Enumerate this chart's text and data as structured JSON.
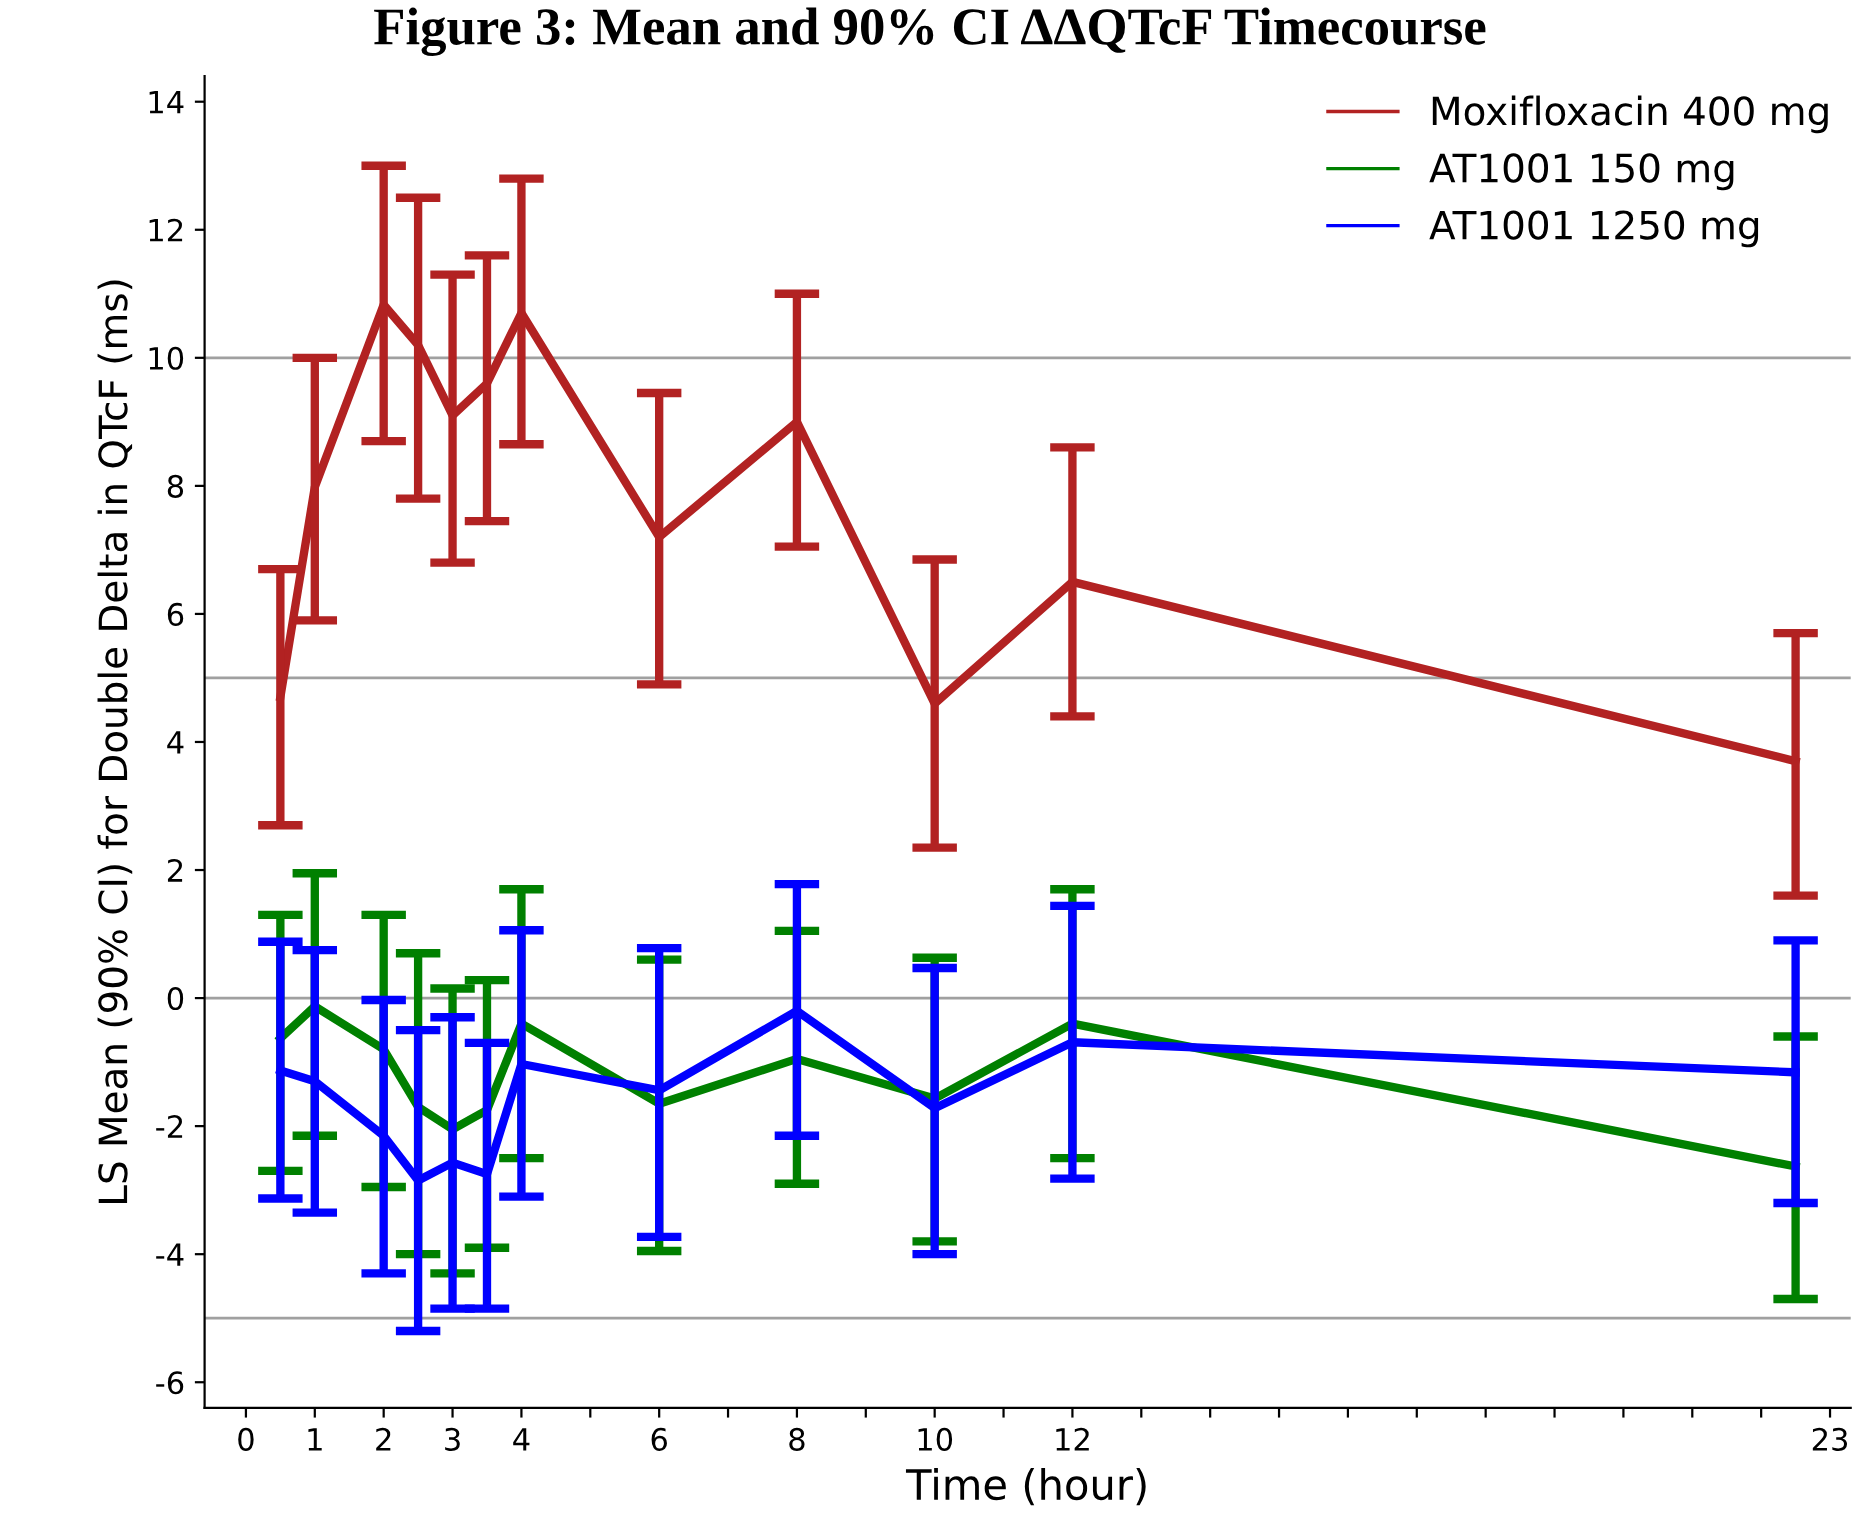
{
  "chart_data": {
    "type": "line",
    "title": "Figure 3: Mean and 90% CI ΔΔQTcF Timecourse",
    "xlabel": "Time (hour)",
    "ylabel": "LS Mean (90% CI) for Double Delta in QTcF (ms)",
    "x": [
      0.5,
      1,
      2,
      2.5,
      3,
      3.5,
      4,
      6,
      8,
      10,
      12,
      22.5
    ],
    "series": [
      {
        "name": "Moxifloxacin 400 mg",
        "color": "#b22222",
        "values": [
          4.7,
          7.98,
          10.83,
          10.2,
          9.1,
          9.6,
          10.7,
          7.2,
          9.0,
          4.6,
          6.5,
          3.7
        ],
        "errors": [
          [
            2.7,
            6.7
          ],
          [
            5.9,
            10.0
          ],
          [
            8.7,
            13.0
          ],
          [
            7.8,
            12.5
          ],
          [
            6.8,
            11.3
          ],
          [
            7.45,
            11.6
          ],
          [
            8.65,
            12.8
          ],
          [
            4.9,
            9.45
          ],
          [
            7.05,
            11.0
          ],
          [
            2.35,
            6.85
          ],
          [
            4.4,
            8.6
          ],
          [
            1.6,
            5.7
          ]
        ]
      },
      {
        "name": "AT1001 150 mg",
        "color": "#008000",
        "values": [
          -0.63,
          -0.13,
          -0.8,
          -1.7,
          -2.05,
          -1.75,
          -0.4,
          -1.65,
          -0.95,
          -1.57,
          -0.4,
          -2.63
        ],
        "errors": [
          [
            -2.7,
            1.3
          ],
          [
            -2.15,
            1.95
          ],
          [
            -2.95,
            1.3
          ],
          [
            -4.0,
            0.7
          ],
          [
            -4.3,
            0.15
          ],
          [
            -3.9,
            0.28
          ],
          [
            -2.5,
            1.7
          ],
          [
            -3.95,
            0.6
          ],
          [
            -2.9,
            1.05
          ],
          [
            -3.8,
            0.63
          ],
          [
            -2.5,
            1.7
          ],
          [
            -4.7,
            -0.6
          ]
        ]
      },
      {
        "name": "AT1001 1250 mg",
        "color": "#0000ff",
        "values": [
          -1.13,
          -1.3,
          -2.15,
          -2.85,
          -2.57,
          -2.75,
          -1.03,
          -1.44,
          -0.2,
          -1.72,
          -0.69,
          -1.16
        ],
        "errors": [
          [
            -3.13,
            0.88
          ],
          [
            -3.35,
            0.75
          ],
          [
            -4.3,
            -0.03
          ],
          [
            -5.2,
            -0.5
          ],
          [
            -4.85,
            -0.3
          ],
          [
            -4.85,
            -0.7
          ],
          [
            -3.1,
            1.06
          ],
          [
            -3.73,
            0.78
          ],
          [
            -2.15,
            1.78
          ],
          [
            -4.0,
            0.47
          ],
          [
            -2.82,
            1.44
          ],
          [
            -3.2,
            0.9
          ]
        ]
      }
    ],
    "xlim": [
      -0.6,
      23.3
    ],
    "xticks": [
      0,
      1,
      2,
      3,
      4,
      {
        "value": 5,
        "label": null
      },
      6,
      {
        "value": 7,
        "label": null
      },
      8,
      {
        "value": 9,
        "label": null
      },
      10,
      {
        "value": 11,
        "label": null
      },
      12,
      {
        "value": 13,
        "label": null
      },
      {
        "value": 14,
        "label": null
      },
      {
        "value": 15,
        "label": null
      },
      {
        "value": 16,
        "label": null
      },
      {
        "value": 17,
        "label": null
      },
      {
        "value": 18,
        "label": null
      },
      {
        "value": 19,
        "label": null
      },
      {
        "value": 20,
        "label": null
      },
      {
        "value": 21,
        "label": null
      },
      {
        "value": 22,
        "label": null
      },
      23
    ],
    "ylim": [
      -6.4,
      14.4
    ],
    "yticks": [
      -6,
      -4,
      -2,
      0,
      2,
      4,
      6,
      8,
      10,
      12,
      14
    ],
    "ref_lines": [
      {
        "axis": "y",
        "value": 10,
        "color": "#a0a0a0"
      },
      {
        "axis": "y",
        "value": 5,
        "color": "#a0a0a0"
      },
      {
        "axis": "y",
        "value": 0,
        "color": "#a0a0a0"
      },
      {
        "axis": "y",
        "value": -5,
        "color": "#a0a0a0"
      }
    ],
    "legend": "top right",
    "grid": false,
    "marker": "none",
    "line_style": "solid"
  }
}
